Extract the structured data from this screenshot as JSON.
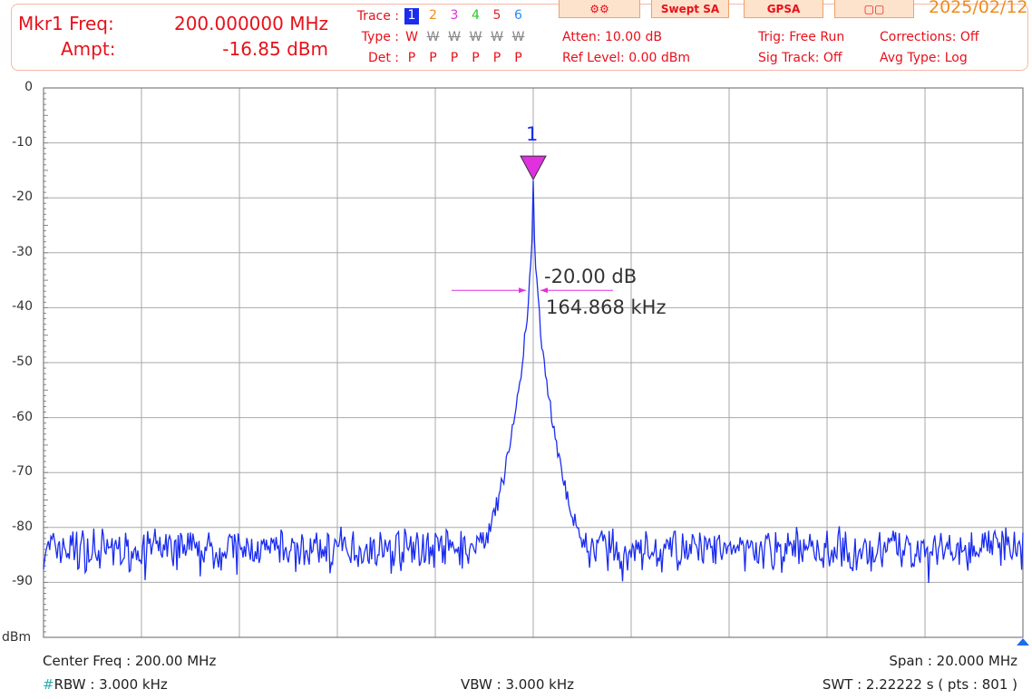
{
  "marker": {
    "freq_label": "Mkr1 Freq:",
    "freq_value": "200.000000 MHz",
    "ampt_label": "Ampt:",
    "ampt_value": "-16.85 dBm",
    "number": "1"
  },
  "traces": {
    "trace_label": "Trace :",
    "type_label": "Type :",
    "det_label": "Det :",
    "numbers": [
      "1",
      "2",
      "3",
      "4",
      "5",
      "6"
    ],
    "colors": [
      "#1a2cf0",
      "#f08c1c",
      "#e030e0",
      "#28c828",
      "#e8202a",
      "#2a8cf0"
    ],
    "types": [
      "W",
      "W",
      "W",
      "W",
      "W",
      "W"
    ],
    "dets": [
      "P",
      "P",
      "P",
      "P",
      "P",
      "P"
    ]
  },
  "settings": {
    "atten": "Atten: 10.00 dB",
    "ref_level": "Ref Level: 0.00 dBm",
    "trig": "Trig: Free Run",
    "sig_track": "Sig Track: Off",
    "corrections": "Corrections: Off",
    "avg_type": "Avg Type: Log"
  },
  "toolbar": {
    "swept_sa": "Swept SA",
    "gpsa": "GPSA",
    "date": "2025/02/12"
  },
  "measurement": {
    "db_label": "-20.00 dB",
    "bw_label": "164.868 kHz"
  },
  "footer": {
    "center_freq": "Center Freq : 200.00 MHz",
    "span": "Span : 20.000 MHz",
    "rbw_hash": "#",
    "rbw": "RBW : 3.000 kHz",
    "vbw": "VBW : 3.000 kHz",
    "swt": "SWT : 2.22222 s ( pts : 801 )"
  },
  "chart_data": {
    "type": "line",
    "ylabel": "dBm",
    "ylim": [
      -100,
      0
    ],
    "yticks": [
      "0",
      "-10",
      "-20",
      "-30",
      "-40",
      "-50",
      "-60",
      "-70",
      "-80",
      "-90"
    ],
    "xlim_mhz": [
      190,
      210
    ],
    "points": 801,
    "peak": {
      "x_mhz": 200,
      "y_dbm": -16.85
    },
    "noise_floor_dbm": -84,
    "trace_color": "#1a2cf0",
    "grid": true
  }
}
